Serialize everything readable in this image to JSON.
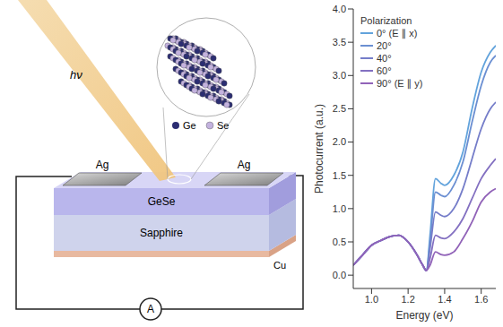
{
  "diagram": {
    "light_label": "hν",
    "atoms": [
      "Ge",
      "Se"
    ],
    "electrodes": [
      "Ag",
      "Ag"
    ],
    "layers": [
      "GeSe",
      "Sapphire",
      "Cu"
    ],
    "meter": "A"
  },
  "chart_data": {
    "type": "line",
    "x_label": "Energy (eV)",
    "y_label": "Photocurrent (a.u.)",
    "legend_title": "Polarization",
    "legend": "upper left",
    "xlim": [
      0.9,
      1.68
    ],
    "xticks": [
      {
        "value": 1.0,
        "label": "1.0"
      },
      {
        "value": 1.2,
        "label": "1.2"
      },
      {
        "value": 1.4,
        "label": "1.4"
      },
      {
        "value": 1.6,
        "label": "1.6"
      }
    ],
    "ylim": [
      -0.2,
      4.0
    ],
    "yticks": [
      {
        "value": 0,
        "label": "0.0"
      },
      {
        "value": 0.5,
        "label": "0.5"
      },
      {
        "value": 1,
        "label": "1.0"
      },
      {
        "value": 1.5,
        "label": "1.5"
      },
      {
        "value": 2,
        "label": "2.0"
      },
      {
        "value": 2.5,
        "label": "2.5"
      },
      {
        "value": 3,
        "label": "3.0"
      },
      {
        "value": 3.5,
        "label": "3.5"
      },
      {
        "value": 4,
        "label": "4.0"
      }
    ],
    "x": [
      0.9,
      0.95,
      1.0,
      1.05,
      1.1,
      1.15,
      1.2,
      1.25,
      1.28,
      1.3,
      1.32,
      1.35,
      1.38,
      1.4,
      1.45,
      1.5,
      1.55,
      1.6,
      1.65,
      1.68
    ],
    "series": [
      {
        "name": "0° (E ∥ x)",
        "color": "#62a3dc",
        "values": [
          0.15,
          0.3,
          0.45,
          0.52,
          0.58,
          0.6,
          0.5,
          0.3,
          0.15,
          0.07,
          0.6,
          1.45,
          1.38,
          1.35,
          1.5,
          1.85,
          2.5,
          3.05,
          3.35,
          3.45
        ]
      },
      {
        "name": "20°",
        "color": "#6b8fd2",
        "values": [
          0.15,
          0.3,
          0.45,
          0.52,
          0.58,
          0.6,
          0.5,
          0.3,
          0.15,
          0.07,
          0.5,
          1.25,
          1.2,
          1.18,
          1.35,
          1.7,
          2.3,
          2.85,
          3.2,
          3.3
        ]
      },
      {
        "name": "40°",
        "color": "#757dc9",
        "values": [
          0.15,
          0.3,
          0.45,
          0.52,
          0.58,
          0.6,
          0.5,
          0.3,
          0.15,
          0.07,
          0.4,
          0.95,
          0.9,
          0.88,
          1.0,
          1.3,
          1.75,
          2.2,
          2.5,
          2.6
        ]
      },
      {
        "name": "60°",
        "color": "#8370c1",
        "values": [
          0.15,
          0.3,
          0.45,
          0.52,
          0.58,
          0.6,
          0.5,
          0.3,
          0.15,
          0.07,
          0.25,
          0.6,
          0.56,
          0.55,
          0.65,
          0.85,
          1.15,
          1.45,
          1.65,
          1.75
        ]
      },
      {
        "name": "90° (E ∥ y)",
        "color": "#9163b8",
        "values": [
          0.15,
          0.3,
          0.45,
          0.52,
          0.58,
          0.6,
          0.5,
          0.3,
          0.15,
          0.07,
          0.15,
          0.35,
          0.31,
          0.3,
          0.35,
          0.55,
          0.8,
          1.1,
          1.25,
          1.3
        ]
      }
    ]
  }
}
